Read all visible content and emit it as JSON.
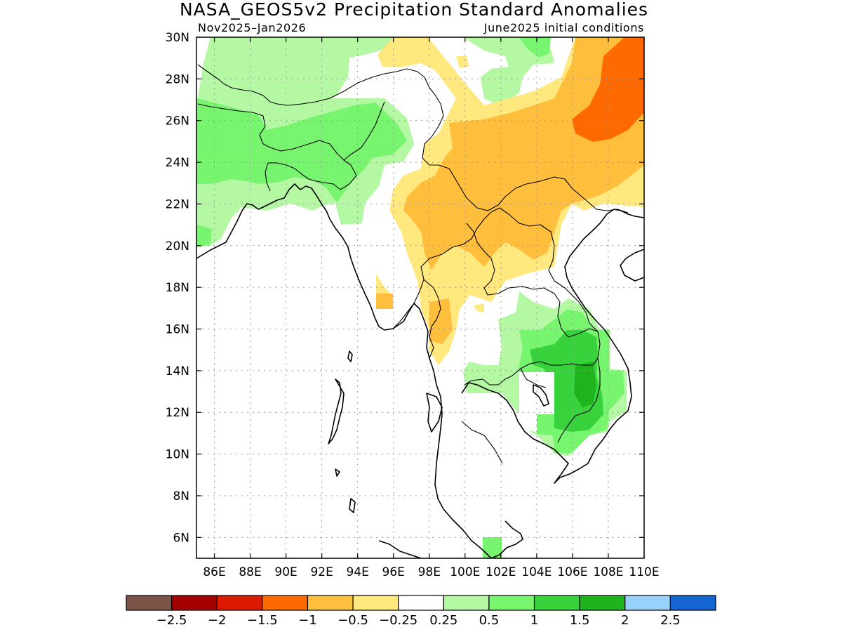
{
  "title": "NASA_GEOS5v2 Precipitation Standard Anomalies",
  "period": "Nov2025–Jan2026",
  "init": "June2025 initial conditions",
  "map": {
    "lon_range": [
      85,
      110
    ],
    "lat_range": [
      5,
      30
    ],
    "lon_ticks": [
      "86E",
      "88E",
      "90E",
      "92E",
      "94E",
      "96E",
      "98E",
      "100E",
      "102E",
      "104E",
      "106E",
      "108E",
      "110E"
    ],
    "lat_ticks": [
      "30N",
      "28N",
      "26N",
      "24N",
      "22N",
      "20N",
      "18N",
      "16N",
      "14N",
      "12N",
      "10N",
      "8N",
      "6N"
    ],
    "grid": true
  },
  "colorbar": {
    "colors": [
      "#7f5448",
      "#a50000",
      "#dc1a00",
      "#ff6a00",
      "#ffbe3c",
      "#ffe87e",
      "#ffffff",
      "#b4f8a4",
      "#78f56e",
      "#37d23c",
      "#1fb41e",
      "#96d2fa",
      "#1464d2"
    ],
    "labels": [
      "−2.5",
      "−2",
      "−1.5",
      "−1",
      "−0.5",
      "−0.25",
      "0.25",
      "0.5",
      "1",
      "1.5",
      "2",
      "2.5"
    ]
  },
  "icons": [
    "coastline-outline",
    "country-borders"
  ]
}
